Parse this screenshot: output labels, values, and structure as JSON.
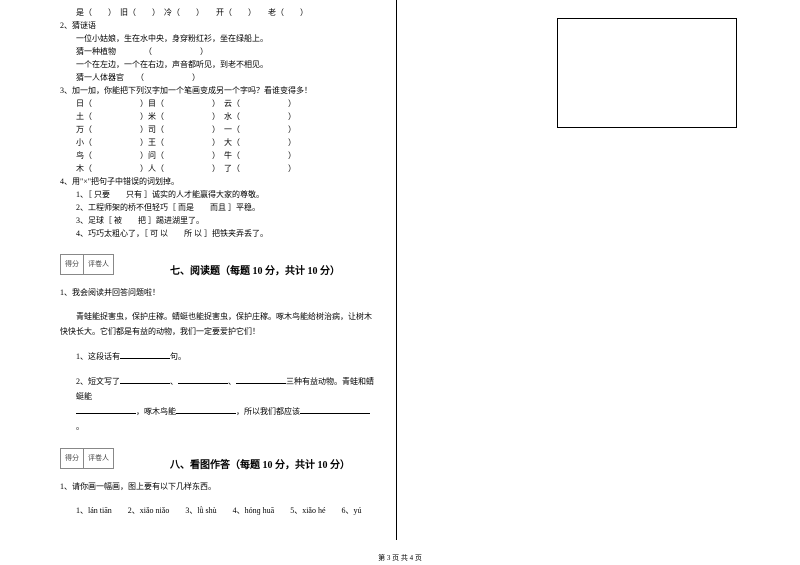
{
  "left": {
    "antonyms": "是（　　）　旧（　　）　冷（　　）　　开（　　）　　老（　　）",
    "q2": "2、猜谜语",
    "q2a": "一位小姑娘，生在水中央，身穿粉红衫，坐在绿船上。",
    "q2a_ans": "猜一种植物　　　　（　　　　　　）",
    "q2b": "一个在左边，一个在右边，声音都听见，到老不相见。",
    "q2b_ans": "猜一人体器官　　（　　　　　　）",
    "q3": "3、加一加，你能把下列汉字加一个笔画变成另一个字吗？看谁变得多！",
    "grid": [
      [
        "日（　　　　　　）目（　　　　　　）　云（　　　　　　）"
      ],
      [
        "土（　　　　　　）米（　　　　　　）　水（　　　　　　）"
      ],
      [
        "万（　　　　　　）司（　　　　　　）　一（　　　　　　）"
      ],
      [
        "小（　　　　　　）王（　　　　　　）　大（　　　　　　）"
      ],
      [
        "鸟（　　　　　　）问（　　　　　　）　牛（　　　　　　）"
      ],
      [
        "木（　　　　　　）人（　　　　　　）　了（　　　　　　）"
      ]
    ],
    "q4": "4、用\"×\"把句子中错误的词划掉。",
    "q4_1": "1、［ 只要　　只有 ］诚实的人才能赢得大家的尊敬。",
    "q4_2": "2、工程师架的桥不但轻巧［ 而是　　而且 ］平稳。",
    "q4_3": "3、足球［ 被　　把 ］踢进湖里了。",
    "q4_4": "4、巧巧太粗心了，［ 可 以　　所 以 ］把铁夹弄丢了。",
    "score1": "得分",
    "score2": "评卷人",
    "sec7": "七、阅读题（每题 10 分，共计 10 分）",
    "q7_1": "1、我会阅读并回答问题啦！",
    "passage": "　　青蛙能捉害虫，保护庄稼。蜻蜓也能捉害虫，保护庄稼。啄木鸟能给树治病，让树木快快长大。它们都是有益的动物，我们一定要爱护它们！",
    "q7_sub1_a": "1、这段话有",
    "q7_sub1_b": "句。",
    "q7_sub2_a": "2、短文写了",
    "q7_sub2_b": "、",
    "q7_sub2_c": "、",
    "q7_sub2_d": "三种有益动物。青蛙和蜻蜓能",
    "q7_sub2_e": "，啄木鸟能",
    "q7_sub2_f": "，所以我们都应该",
    "q7_sub2_g": "。",
    "sec8": "八、看图作答（每题 10 分，共计 10 分）",
    "q8_1": "1、请你画一幅画，图上要有以下几样东西。",
    "q8_items": "1、lán tiān　　2、xiǎo niǎo　　3、lǜ shù　　4、hónɡ huā　　5、xiǎo hé　　6、yú"
  },
  "footer": "第 3 页  共 4 页"
}
